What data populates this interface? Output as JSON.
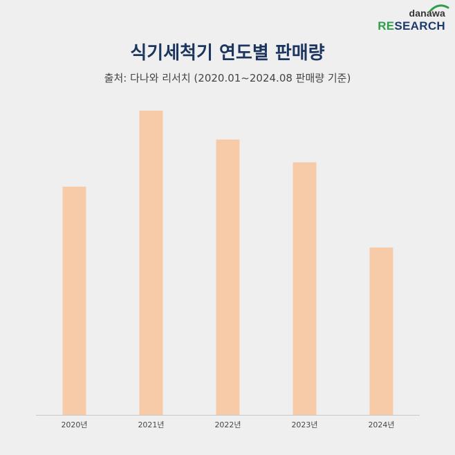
{
  "logo": {
    "top": "danawa",
    "re": "RE",
    "rest": "SEARCH"
  },
  "title": "식기세척기 연도별 판매량",
  "subtitle": "출처: 다나와 리서치 (2020.01~2024.08 판매량 기준)",
  "colors": {
    "bar": "#f8cba8",
    "axis": "#c8c8c8",
    "title": "#1b355f",
    "logo_green": "#2f9e4a",
    "logo_navy": "#1c3a6b"
  },
  "chart_data": {
    "type": "bar",
    "title": "식기세척기 연도별 판매량",
    "subtitle": "출처: 다나와 리서치 (2020.01~2024.08 판매량 기준)",
    "categories": [
      "2020년",
      "2021년",
      "2022년",
      "2023년",
      "2024년"
    ],
    "values": [
      75,
      100,
      90.5,
      83,
      55
    ],
    "ylim": [
      0,
      100
    ],
    "grid": false,
    "legend": "none"
  }
}
